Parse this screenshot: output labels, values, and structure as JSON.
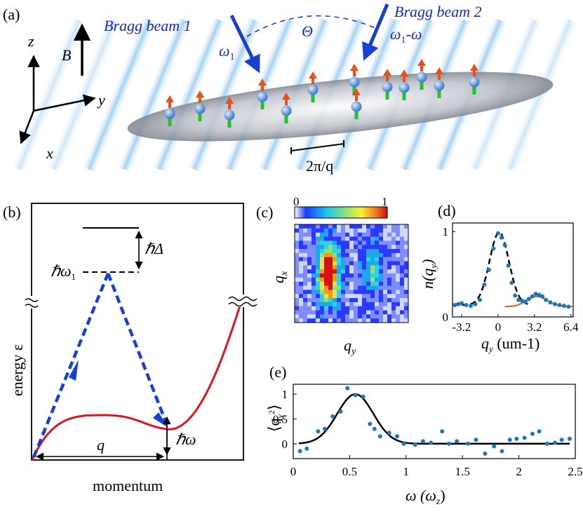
{
  "panel_a": {
    "label": "(a)",
    "beam1_label": "Bragg beam 1",
    "beam2_label": "Bragg beam 2",
    "omega1": "ω",
    "omega1_sub": "1",
    "omega2_pre": "ω",
    "omega2_sub": "1",
    "omega2_post": "-ω",
    "theta": "Θ",
    "B": "B",
    "axis_z": "z",
    "axis_y": "y",
    "axis_x": "x",
    "period_label": "2π/q"
  },
  "panel_b": {
    "label": "(b)",
    "hbar_delta": "ℏΔ",
    "hbar_omega1": "ℏω",
    "hbar_omega1_sub": "1",
    "hbar_omega": "ℏω",
    "q": "q",
    "ylabel": "energy ε",
    "xlabel": "momentum",
    "colors": {
      "dispersion": "#e0141b",
      "bragg": "#1a3fd6"
    }
  },
  "panel_c": {
    "label": "(c)",
    "colorbar_min": "0",
    "colorbar_max": "1",
    "xlabel": "q",
    "xlabel_sub": "y",
    "ylabel": "q",
    "ylabel_sub": "x"
  },
  "chart_data": [
    {
      "type": "line",
      "panel": "d",
      "label": "(d)",
      "ylabel_text": "n(q",
      "ylabel_sub": "y",
      "xlabel_text": "q",
      "xlabel_sub": "y",
      "xlabel_unit": " (um-1)",
      "x_ticks": [
        "-3.2",
        "0",
        "3.2",
        "6.4"
      ],
      "y_ticks": [
        "0",
        "1"
      ],
      "xlim": [
        -4,
        6.6
      ],
      "ylim": [
        0,
        1.1
      ],
      "points": {
        "x": [
          -3.8,
          -3.5,
          -3.2,
          -2.8,
          -2.4,
          -2.0,
          -1.6,
          -1.2,
          -0.8,
          -0.4,
          0.0,
          0.3,
          0.6,
          0.9,
          1.2,
          1.5,
          1.8,
          2.1,
          2.4,
          2.7,
          3.0,
          3.3,
          3.6,
          3.9,
          4.2,
          4.6,
          5.0,
          5.4,
          5.8,
          6.2
        ],
        "y": [
          0.14,
          0.15,
          0.16,
          0.14,
          0.13,
          0.15,
          0.2,
          0.38,
          0.55,
          0.8,
          0.98,
          0.93,
          0.84,
          0.6,
          0.4,
          0.25,
          0.2,
          0.19,
          0.18,
          0.21,
          0.24,
          0.27,
          0.26,
          0.24,
          0.2,
          0.17,
          0.15,
          0.14,
          0.13,
          0.12
        ]
      },
      "fit_main": {
        "amplitude": 0.85,
        "center": 0.1,
        "sigma": 0.85,
        "offset": 0.14
      },
      "fit_side": {
        "amplitude": 0.12,
        "center": 3.4,
        "sigma": 0.9,
        "offset": 0.12
      },
      "colors": {
        "points": "#1f77b4",
        "fit_main": "#000000",
        "fit_side": "#e0561b"
      }
    },
    {
      "type": "scatter",
      "panel": "e",
      "label": "(e)",
      "ylabel_text": "⟨q",
      "ylabel_sub": "y",
      "ylabel_sup": "2",
      "ylabel_end": "⟩",
      "xlabel_text": "ω (ω",
      "xlabel_sub": "z",
      "xlabel_end": ")",
      "x_ticks": [
        "0",
        "0.5",
        "1",
        "1.5",
        "2",
        "2.5"
      ],
      "y_ticks": [
        "0",
        "0.5",
        "1"
      ],
      "xlim": [
        0,
        2.5
      ],
      "ylim": [
        -0.3,
        1.2
      ],
      "points": {
        "x": [
          0.06,
          0.12,
          0.22,
          0.28,
          0.35,
          0.42,
          0.48,
          0.55,
          0.62,
          0.68,
          0.72,
          0.77,
          0.85,
          0.92,
          0.98,
          1.08,
          1.15,
          1.22,
          1.32,
          1.38,
          1.45,
          1.55,
          1.62,
          1.7,
          1.78,
          1.85,
          1.92,
          1.98,
          2.05,
          2.12,
          2.18,
          2.25,
          2.32,
          2.38,
          2.45
        ],
        "y": [
          -0.15,
          -0.1,
          0.25,
          0.3,
          0.55,
          0.65,
          1.12,
          0.98,
          0.95,
          0.4,
          0.3,
          0.15,
          0.22,
          0.15,
          0.0,
          -0.02,
          0.05,
          0.02,
          0.25,
          0.0,
          0.05,
          0.0,
          0.08,
          -0.2,
          -0.05,
          -0.15,
          0.08,
          0.1,
          0.12,
          0.2,
          0.25,
          0.0,
          0.02,
          0.08,
          0.1
        ]
      },
      "fit": {
        "amplitude": 1.0,
        "center": 0.55,
        "sigma": 0.16,
        "offset": 0.0
      },
      "colors": {
        "points": "#1f77b4",
        "fit": "#000000"
      }
    }
  ]
}
